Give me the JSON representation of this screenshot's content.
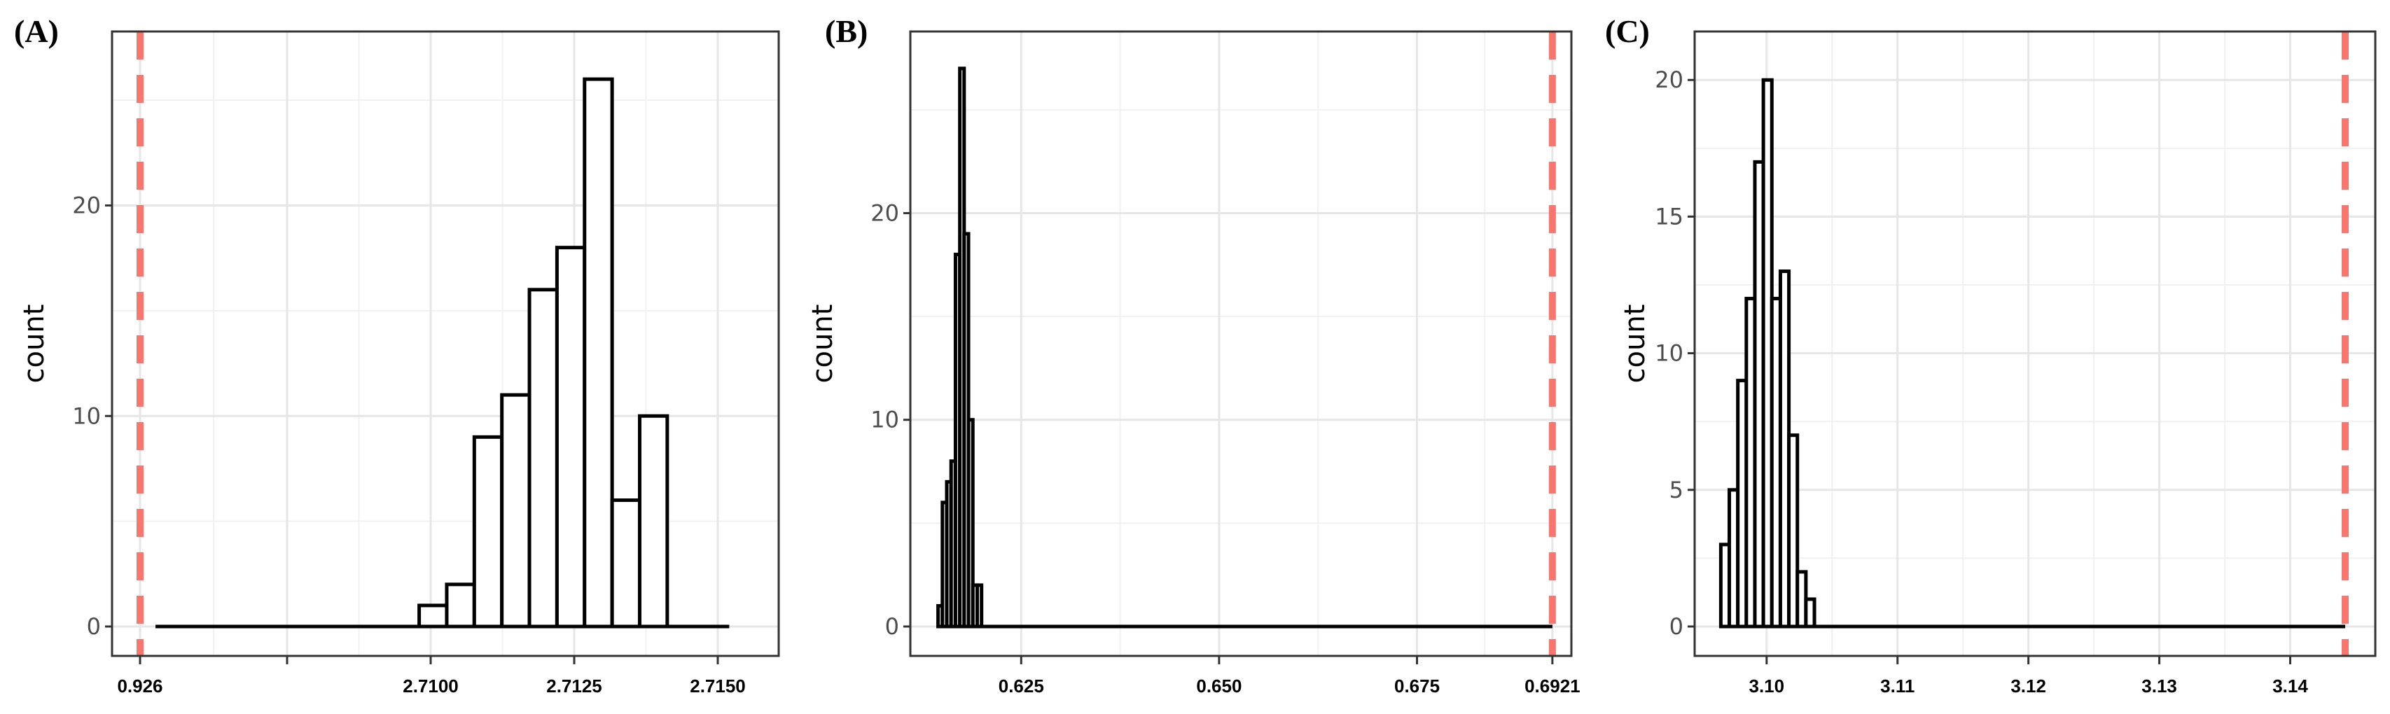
{
  "chart_data": [
    {
      "panel_label": "(A)",
      "type": "bar",
      "ylabel": "count",
      "ylim": [
        0,
        27
      ],
      "yticks": [
        0,
        10,
        20
      ],
      "xticks": [
        {
          "label": "0.926",
          "slot": 0
        },
        {
          "label": "",
          "slot": 1
        },
        {
          "label": "2.7100",
          "slot": 2
        },
        {
          "label": "2.7125",
          "slot": 3
        },
        {
          "label": "2.7150",
          "slot": 4
        }
      ],
      "reference_line_slot": 0,
      "bin_width": 0.00048,
      "bins": [
        {
          "x": 2.7098,
          "count": 1
        },
        {
          "x": 2.71028,
          "count": 2
        },
        {
          "x": 2.71076,
          "count": 9
        },
        {
          "x": 2.71124,
          "count": 11
        },
        {
          "x": 2.71172,
          "count": 16
        },
        {
          "x": 2.7122,
          "count": 18
        },
        {
          "x": 2.71268,
          "count": 26
        },
        {
          "x": 2.71316,
          "count": 6
        },
        {
          "x": 2.71364,
          "count": 10
        }
      ],
      "baseline_range": [
        "axis-break",
        2.7152
      ],
      "ref_color": "#f8766d"
    },
    {
      "panel_label": "(B)",
      "type": "bar",
      "ylabel": "count",
      "ylim": [
        0,
        27.5
      ],
      "yticks": [
        0,
        10,
        20
      ],
      "xlim": [
        0.611,
        0.6945
      ],
      "xticks": [
        {
          "label": "0.625",
          "value": 0.625
        },
        {
          "label": "0.650",
          "value": 0.65
        },
        {
          "label": "0.675",
          "value": 0.675
        },
        {
          "label": "0.6921",
          "value": 0.6921
        }
      ],
      "reference_line": 0.6921,
      "bin_width": 0.000545,
      "bins": [
        {
          "x": 0.6145,
          "count": 1
        },
        {
          "x": 0.61505,
          "count": 6
        },
        {
          "x": 0.6156,
          "count": 7
        },
        {
          "x": 0.61615,
          "count": 8
        },
        {
          "x": 0.6167,
          "count": 18
        },
        {
          "x": 0.61725,
          "count": 27
        },
        {
          "x": 0.6178,
          "count": 19
        },
        {
          "x": 0.61835,
          "count": 10
        },
        {
          "x": 0.6189,
          "count": 2
        },
        {
          "x": 0.61945,
          "count": 2
        }
      ],
      "baseline_range": [
        0.6145,
        0.6921
      ],
      "ref_color": "#f8766d"
    },
    {
      "panel_label": "(C)",
      "type": "bar",
      "ylabel": "count",
      "ylim": [
        0,
        20.8
      ],
      "yticks": [
        0,
        5,
        10,
        15,
        20
      ],
      "xlim": [
        3.0945,
        3.1465
      ],
      "xticks": [
        {
          "label": "3.10",
          "value": 3.1
        },
        {
          "label": "3.11",
          "value": 3.11
        },
        {
          "label": "3.12",
          "value": 3.12
        },
        {
          "label": "3.13",
          "value": 3.13
        },
        {
          "label": "3.14",
          "value": 3.14
        }
      ],
      "reference_line": 3.1442,
      "bin_width": 0.00065,
      "bins": [
        {
          "x": 3.0965,
          "count": 3
        },
        {
          "x": 3.09715,
          "count": 5
        },
        {
          "x": 3.0978,
          "count": 9
        },
        {
          "x": 3.09845,
          "count": 12
        },
        {
          "x": 3.0991,
          "count": 17
        },
        {
          "x": 3.09975,
          "count": 20
        },
        {
          "x": 3.1004,
          "count": 12
        },
        {
          "x": 3.10105,
          "count": 13
        },
        {
          "x": 3.1017,
          "count": 7
        },
        {
          "x": 3.10235,
          "count": 2
        },
        {
          "x": 3.103,
          "count": 1
        }
      ],
      "baseline_range": [
        3.0965,
        3.1442
      ],
      "ref_color": "#f8766d"
    }
  ]
}
